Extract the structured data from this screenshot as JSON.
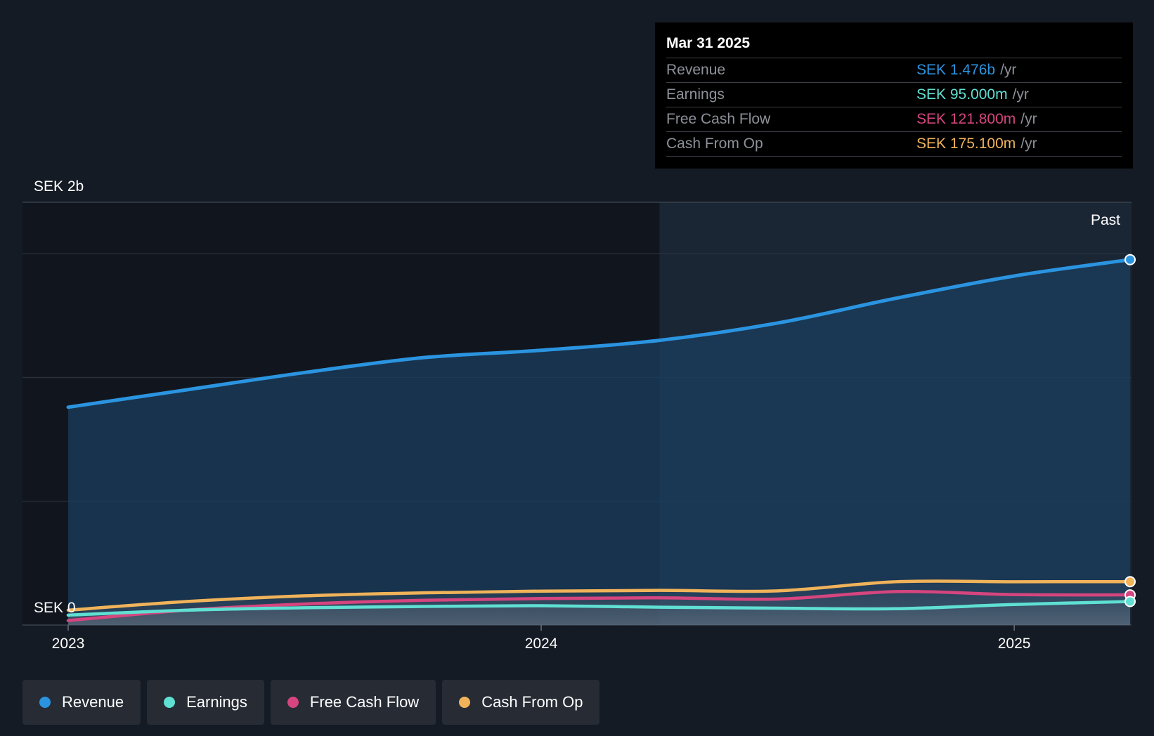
{
  "tooltip": {
    "date": "Mar 31 2025",
    "rows": [
      {
        "label": "Revenue",
        "value": "SEK 1.476b",
        "unit": "/yr",
        "color": "#2b94e0"
      },
      {
        "label": "Earnings",
        "value": "SEK 95.000m",
        "unit": "/yr",
        "color": "#5fe0d2"
      },
      {
        "label": "Free Cash Flow",
        "value": "SEK 121.800m",
        "unit": "/yr",
        "color": "#d6457f"
      },
      {
        "label": "Cash From Op",
        "value": "SEK 175.100m",
        "unit": "/yr",
        "color": "#f0b35a"
      }
    ]
  },
  "legend": [
    {
      "label": "Revenue",
      "color": "#2b94e0"
    },
    {
      "label": "Earnings",
      "color": "#5fe0d2"
    },
    {
      "label": "Free Cash Flow",
      "color": "#d6457f"
    },
    {
      "label": "Cash From Op",
      "color": "#f0b35a"
    }
  ],
  "chart_data": {
    "type": "area",
    "y_top_label": "SEK 2b",
    "y_zero_label": "SEK 0",
    "past_label": "Past",
    "ylim": [
      0,
      1.6
    ],
    "y_unit": "SEK b",
    "xlim": [
      2023.0,
      2025.245
    ],
    "x_ticks": [
      {
        "value": 2023.0,
        "label": "2023"
      },
      {
        "value": 2024.0,
        "label": "2024"
      },
      {
        "value": 2025.0,
        "label": "2025"
      }
    ],
    "highlight_start": 2024.25,
    "grid": true,
    "legend_position": "bottom-left",
    "series": [
      {
        "name": "Revenue",
        "color": "#2b94e0",
        "x": [
          2023.0,
          2023.25,
          2023.5,
          2023.75,
          2024.0,
          2024.25,
          2024.5,
          2024.75,
          2025.0,
          2025.245
        ],
        "values": [
          0.88,
          0.95,
          1.02,
          1.08,
          1.11,
          1.15,
          1.22,
          1.32,
          1.41,
          1.476
        ]
      },
      {
        "name": "Earnings",
        "color": "#5fe0d2",
        "x": [
          2023.0,
          2023.25,
          2023.5,
          2023.75,
          2024.0,
          2024.25,
          2024.5,
          2024.75,
          2025.0,
          2025.245
        ],
        "values": [
          0.04,
          0.06,
          0.07,
          0.075,
          0.078,
          0.072,
          0.068,
          0.066,
          0.083,
          0.095
        ]
      },
      {
        "name": "Free Cash Flow",
        "color": "#d6457f",
        "x": [
          2023.0,
          2023.25,
          2023.5,
          2023.75,
          2024.0,
          2024.25,
          2024.5,
          2024.75,
          2025.0,
          2025.245
        ],
        "values": [
          0.018,
          0.06,
          0.085,
          0.1,
          0.107,
          0.11,
          0.105,
          0.135,
          0.123,
          0.1218
        ]
      },
      {
        "name": "Cash From Op",
        "color": "#f0b35a",
        "x": [
          2023.0,
          2023.25,
          2023.5,
          2023.75,
          2024.0,
          2024.25,
          2024.5,
          2024.75,
          2025.0,
          2025.245
        ],
        "values": [
          0.06,
          0.095,
          0.118,
          0.13,
          0.137,
          0.14,
          0.138,
          0.175,
          0.175,
          0.1751
        ]
      }
    ]
  }
}
